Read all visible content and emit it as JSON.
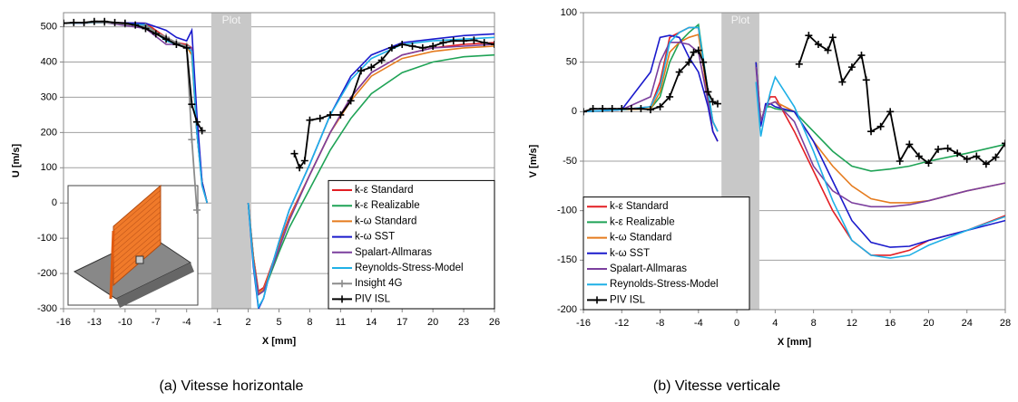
{
  "chart_data": [
    {
      "type": "line",
      "caption": "(a)  Vitesse horizontale",
      "xlabel": "X [mm]",
      "ylabel": "U [m/s]",
      "xlim": [
        -16,
        26
      ],
      "ylim": [
        -300,
        540
      ],
      "xticks": [
        -16,
        -13,
        -10,
        -7,
        -4,
        -1,
        2,
        5,
        8,
        11,
        14,
        17,
        20,
        23,
        26
      ],
      "yticks": [
        -300,
        -200,
        -100,
        0,
        100,
        200,
        300,
        400,
        500
      ],
      "grid": true,
      "legend": "lower right",
      "region": [
        -1.6,
        2.3
      ],
      "region_label": "Plot",
      "series": [
        {
          "name": "k-ε Standard",
          "color": "#e31e24",
          "x": [
            -16,
            -12,
            -8,
            -6,
            -5,
            -4,
            -3.5,
            -3,
            -2.5,
            -2,
            0,
            2,
            2.5,
            3,
            3.5,
            4,
            5,
            6,
            8,
            10,
            12,
            14,
            17,
            20,
            23,
            26
          ],
          "values": [
            510,
            512,
            510,
            470,
            455,
            450,
            440,
            200,
            60,
            0,
            null,
            0,
            -150,
            -250,
            -240,
            -200,
            -120,
            -40,
            80,
            200,
            300,
            370,
            420,
            440,
            450,
            455
          ]
        },
        {
          "name": "k-ε Realizable",
          "color": "#1fa356",
          "x": [
            -16,
            -12,
            -8,
            -6,
            -5,
            -4,
            -3.5,
            -3,
            -2.5,
            -2,
            0,
            2,
            2.5,
            3,
            3.5,
            4,
            5,
            6,
            8,
            10,
            12,
            14,
            17,
            20,
            23,
            26
          ],
          "values": [
            510,
            512,
            505,
            465,
            455,
            445,
            420,
            200,
            60,
            0,
            null,
            0,
            -150,
            -260,
            -250,
            -215,
            -140,
            -70,
            40,
            150,
            240,
            310,
            370,
            400,
            415,
            420
          ]
        },
        {
          "name": "k-ω Standard",
          "color": "#e57b1e",
          "x": [
            -16,
            -12,
            -8,
            -6,
            -5,
            -4,
            -3.5,
            -3,
            -2.5,
            -2,
            0,
            2,
            2.5,
            3,
            3.5,
            4,
            5,
            6,
            8,
            10,
            12,
            14,
            17,
            20,
            23,
            26
          ],
          "values": [
            510,
            512,
            505,
            460,
            450,
            445,
            420,
            200,
            60,
            0,
            null,
            0,
            -150,
            -255,
            -245,
            -205,
            -125,
            -45,
            80,
            200,
            290,
            360,
            410,
            430,
            440,
            445
          ]
        },
        {
          "name": "k-ω SST",
          "color": "#1a1acc",
          "x": [
            -16,
            -12,
            -8,
            -6,
            -5,
            -4,
            -3.5,
            -3,
            -2.5,
            -2,
            0,
            2,
            2.5,
            3,
            3.5,
            4,
            5,
            6,
            8,
            10,
            12,
            14,
            17,
            20,
            23,
            26
          ],
          "values": [
            510,
            512,
            510,
            490,
            470,
            460,
            490,
            250,
            60,
            0,
            null,
            0,
            -180,
            -300,
            -270,
            -210,
            -110,
            -20,
            110,
            250,
            360,
            420,
            455,
            465,
            475,
            480
          ]
        },
        {
          "name": "Spalart-Allmaras",
          "color": "#7b3f9e",
          "x": [
            -16,
            -12,
            -8,
            -6,
            -5,
            -4,
            -3.5,
            -3,
            -2.5,
            -2,
            0,
            2,
            2.5,
            3,
            3.5,
            4,
            5,
            6,
            8,
            10,
            12,
            14,
            17,
            20,
            23,
            26
          ],
          "values": [
            510,
            512,
            495,
            450,
            450,
            440,
            440,
            200,
            50,
            0,
            null,
            0,
            -160,
            -260,
            -250,
            -210,
            -130,
            -50,
            80,
            200,
            300,
            370,
            420,
            440,
            445,
            450
          ]
        },
        {
          "name": "Reynolds-Stress-Model",
          "color": "#1fb0e6",
          "x": [
            -16,
            -12,
            -8,
            -6,
            -5,
            -4,
            -3.5,
            -3,
            -2.5,
            -2,
            0,
            2,
            2.5,
            3,
            3.5,
            4,
            5,
            6,
            8,
            10,
            12,
            14,
            17,
            20,
            23,
            26
          ],
          "values": [
            510,
            512,
            505,
            460,
            450,
            445,
            430,
            200,
            50,
            0,
            null,
            0,
            -170,
            -295,
            -270,
            -210,
            -110,
            -20,
            110,
            250,
            350,
            410,
            450,
            460,
            465,
            470
          ]
        },
        {
          "name": "Insight 4G",
          "color": "#8c8c8c",
          "marker": "+",
          "x": [
            -16,
            -14,
            -12,
            -10,
            -8,
            -6,
            -5,
            -4,
            -3.5,
            -3
          ],
          "values": [
            510,
            512,
            512,
            508,
            500,
            470,
            455,
            445,
            180,
            -20
          ]
        },
        {
          "name": "PIV ISL",
          "color": "#000000",
          "marker": "+",
          "x": [
            -16,
            -15,
            -14,
            -13,
            -12,
            -11,
            -10,
            -9,
            -8,
            -7,
            -6,
            -5,
            -4,
            -3.5,
            -3,
            -2.5,
            0,
            6.5,
            7,
            7.5,
            8,
            9,
            10,
            11,
            12,
            13,
            14,
            15,
            16,
            17,
            18,
            19,
            20,
            21,
            22,
            23,
            24,
            25,
            26
          ],
          "values": [
            510,
            512,
            512,
            515,
            515,
            512,
            510,
            505,
            495,
            480,
            465,
            450,
            440,
            280,
            230,
            205,
            null,
            140,
            100,
            120,
            235,
            240,
            250,
            250,
            290,
            375,
            385,
            405,
            440,
            450,
            445,
            440,
            445,
            455,
            460,
            460,
            462,
            455,
            450
          ]
        }
      ]
    },
    {
      "type": "line",
      "caption": "(b)  Vitesse verticale",
      "xlabel": "X [mm]",
      "ylabel": "V [m/s]",
      "xlim": [
        -16,
        28
      ],
      "ylim": [
        -200,
        100
      ],
      "xticks": [
        -16,
        -12,
        -8,
        -4,
        0,
        4,
        8,
        12,
        16,
        20,
        24,
        28
      ],
      "yticks": [
        -200,
        -150,
        -100,
        -50,
        0,
        50,
        100
      ],
      "grid": true,
      "legend": "lower left",
      "region": [
        -1.6,
        2.35
      ],
      "region_label": "Plot",
      "series": [
        {
          "name": "k-ε Standard",
          "color": "#e31e24",
          "x": [
            -16,
            -12,
            -9,
            -8,
            -7,
            -6,
            -5,
            -4,
            -3,
            -2.5,
            -2,
            0,
            2,
            2.5,
            3,
            3.5,
            4,
            6,
            8,
            10,
            12,
            14,
            16,
            18,
            20,
            24,
            28
          ],
          "values": [
            0,
            2,
            5,
            30,
            75,
            80,
            85,
            85,
            10,
            -20,
            -30,
            null,
            50,
            -10,
            5,
            15,
            15,
            -20,
            -60,
            -100,
            -130,
            -145,
            -145,
            -140,
            -130,
            -120,
            -105
          ]
        },
        {
          "name": "k-ε Realizable",
          "color": "#1fa356",
          "x": [
            -16,
            -12,
            -9,
            -8,
            -7,
            -6,
            -5,
            -4,
            -3,
            -2.5,
            -2,
            0,
            2,
            2.5,
            3,
            3.5,
            4,
            6,
            8,
            10,
            12,
            14,
            16,
            18,
            20,
            24,
            28
          ],
          "values": [
            0,
            2,
            3,
            15,
            50,
            70,
            80,
            88,
            20,
            -10,
            -20,
            null,
            50,
            -10,
            5,
            5,
            3,
            0,
            -20,
            -40,
            -55,
            -60,
            -58,
            -55,
            -50,
            -42,
            -33
          ]
        },
        {
          "name": "k-ω Standard",
          "color": "#e57b1e",
          "x": [
            -16,
            -12,
            -9,
            -8,
            -7,
            -6,
            -5,
            -4,
            -3,
            -2.5,
            -2,
            0,
            2,
            2.5,
            3,
            3.5,
            4,
            6,
            8,
            10,
            12,
            14,
            16,
            18,
            20,
            24,
            28
          ],
          "values": [
            0,
            2,
            3,
            20,
            60,
            70,
            75,
            78,
            15,
            -10,
            -20,
            null,
            50,
            -10,
            5,
            8,
            10,
            0,
            -30,
            -55,
            -75,
            -88,
            -92,
            -92,
            -90,
            -80,
            -72
          ]
        },
        {
          "name": "k-ω SST",
          "color": "#1a1acc",
          "x": [
            -16,
            -12,
            -9,
            -8,
            -7,
            -6,
            -5,
            -4,
            -3,
            -2.5,
            -2,
            0,
            2,
            2.5,
            3,
            3.5,
            4,
            6,
            8,
            10,
            12,
            14,
            16,
            18,
            20,
            24,
            28
          ],
          "values": [
            0,
            2,
            40,
            75,
            77,
            75,
            55,
            40,
            5,
            -20,
            -30,
            null,
            50,
            -15,
            8,
            8,
            5,
            0,
            -30,
            -70,
            -110,
            -132,
            -137,
            -136,
            -130,
            -120,
            -110
          ]
        },
        {
          "name": "Spalart-Allmaras",
          "color": "#7b3f9e",
          "x": [
            -16,
            -12,
            -9,
            -8,
            -7,
            -6,
            -5,
            -4,
            -3,
            -2.5,
            -2,
            0,
            2,
            2.5,
            3,
            3.5,
            4,
            6,
            8,
            10,
            12,
            14,
            16,
            18,
            20,
            24,
            28
          ],
          "values": [
            0,
            2,
            15,
            50,
            70,
            70,
            68,
            60,
            10,
            -10,
            -20,
            null,
            45,
            -10,
            5,
            8,
            10,
            -10,
            -55,
            -80,
            -92,
            -96,
            -96,
            -94,
            -90,
            -80,
            -72
          ]
        },
        {
          "name": "Reynolds-Stress-Model",
          "color": "#1fb0e6",
          "x": [
            -16,
            -12,
            -9,
            -8,
            -7,
            -6,
            -5,
            -4,
            -3,
            -2.5,
            -2,
            0,
            2,
            2.5,
            3,
            3.5,
            4,
            6,
            8,
            10,
            12,
            14,
            16,
            18,
            20,
            24,
            28
          ],
          "values": [
            0,
            2,
            5,
            25,
            70,
            80,
            85,
            85,
            20,
            -10,
            -20,
            null,
            30,
            -25,
            0,
            20,
            35,
            5,
            -40,
            -90,
            -130,
            -145,
            -148,
            -145,
            -135,
            -120,
            -106
          ]
        },
        {
          "name": "PIV ISL",
          "color": "#000000",
          "marker": "+",
          "x": [
            -16,
            -15,
            -14,
            -13,
            -12,
            -11,
            -10,
            -9,
            -8,
            -7,
            -6,
            -5,
            -4.5,
            -4,
            -3.5,
            -3,
            -2.5,
            -2,
            0,
            6.5,
            7.5,
            8.5,
            9.5,
            10,
            11,
            12,
            13,
            13.5,
            14,
            15,
            16,
            17,
            18,
            19,
            20,
            21,
            22,
            23,
            24,
            25,
            26,
            27,
            28
          ],
          "values": [
            0,
            3,
            3,
            3,
            3,
            3,
            3,
            2,
            5,
            15,
            40,
            50,
            60,
            62,
            50,
            20,
            10,
            8,
            null,
            48,
            77,
            68,
            62,
            75,
            30,
            45,
            57,
            32,
            -20,
            -15,
            0,
            -50,
            -33,
            -45,
            -52,
            -38,
            -37,
            -42,
            -48,
            -45,
            -53,
            -46,
            -32
          ]
        }
      ]
    }
  ]
}
